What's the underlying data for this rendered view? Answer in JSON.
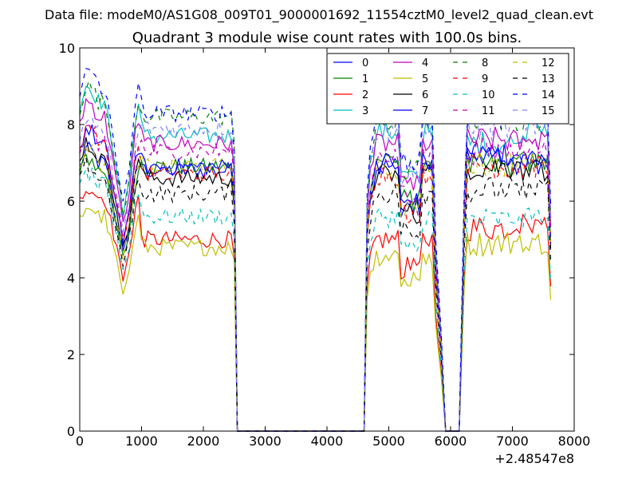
{
  "header": {
    "suptitle": "Data file: modeM0/AS1G08_009T01_9000001692_11554cztM0_level2_quad_clean.evt"
  },
  "chart_data": {
    "type": "line",
    "title": "Quadrant 3 module wise count rates with 100.0s bins.",
    "xlabel": "",
    "ylabel": "",
    "xlim": [
      0,
      8000
    ],
    "ylim": [
      0,
      10
    ],
    "x_offset_label": "+2.48547e8",
    "x_ticks": [
      0,
      1000,
      2000,
      3000,
      4000,
      5000,
      6000,
      7000,
      8000
    ],
    "x_tick_labels": [
      "0",
      "1000",
      "2000",
      "3000",
      "4000",
      "5000",
      "6000",
      "7000",
      "8000"
    ],
    "y_ticks": [
      0,
      2,
      4,
      6,
      8,
      10
    ],
    "y_tick_labels": [
      "0",
      "2",
      "4",
      "6",
      "8",
      "10"
    ],
    "grid": false,
    "legend_position": "top-right",
    "legend_columns": 4,
    "segments": {
      "a": [
        0,
        2550
      ],
      "b": [
        4620,
        5920
      ],
      "c": [
        6140,
        7620
      ]
    },
    "series": [
      {
        "name": "0",
        "color": "#0000ff",
        "dash": "solid",
        "base": [
          7.0,
          6.8,
          6.9,
          7.2,
          7.0
        ]
      },
      {
        "name": "1",
        "color": "#008000",
        "dash": "solid",
        "base": [
          6.8,
          6.9,
          7.1,
          6.9,
          7.0
        ]
      },
      {
        "name": "2",
        "color": "#ff0000",
        "dash": "solid",
        "base": [
          6.1,
          5.0,
          5.0,
          5.3,
          5.4
        ]
      },
      {
        "name": "3",
        "color": "#00bfbf",
        "dash": "solid",
        "base": [
          8.6,
          7.7,
          7.8,
          7.5,
          7.8
        ]
      },
      {
        "name": "4",
        "color": "#bf00bf",
        "dash": "solid",
        "base": [
          8.2,
          7.5,
          7.5,
          7.6,
          7.6
        ]
      },
      {
        "name": "5",
        "color": "#bfbf00",
        "dash": "solid",
        "base": [
          5.6,
          4.8,
          4.6,
          4.9,
          4.9
        ]
      },
      {
        "name": "6",
        "color": "#000000",
        "dash": "solid",
        "base": [
          7.2,
          6.6,
          6.7,
          6.9,
          6.8
        ]
      },
      {
        "name": "7",
        "color": "#0000ff",
        "dash": "solid",
        "base": [
          7.5,
          6.9,
          7.0,
          7.2,
          7.0
        ]
      },
      {
        "name": "8",
        "color": "#008000",
        "dash": "dashed",
        "base": [
          8.6,
          8.2,
          8.0,
          8.2,
          8.1
        ]
      },
      {
        "name": "9",
        "color": "#ff0000",
        "dash": "dashed",
        "base": [
          7.6,
          6.7,
          6.7,
          6.9,
          6.9
        ]
      },
      {
        "name": "10",
        "color": "#00bfbf",
        "dash": "dashed",
        "base": [
          6.4,
          5.6,
          5.6,
          5.5,
          5.6
        ]
      },
      {
        "name": "11",
        "color": "#bf00bf",
        "dash": "dashed",
        "base": [
          7.5,
          7.3,
          7.2,
          7.3,
          7.4
        ]
      },
      {
        "name": "12",
        "color": "#bfbf00",
        "dash": "dashed",
        "base": [
          7.0,
          6.9,
          6.8,
          7.0,
          7.0
        ]
      },
      {
        "name": "13",
        "color": "#000000",
        "dash": "dashed",
        "base": [
          6.6,
          6.2,
          6.2,
          6.3,
          6.3
        ]
      },
      {
        "name": "14",
        "color": "#0000ff",
        "dash": "dashed",
        "base": [
          9.0,
          8.3,
          8.3,
          8.2,
          8.4
        ]
      },
      {
        "name": "15",
        "color": "#7f7fff",
        "dash": "dashed",
        "base": [
          7.8,
          7.9,
          7.8,
          7.9,
          8.0
        ]
      }
    ]
  }
}
